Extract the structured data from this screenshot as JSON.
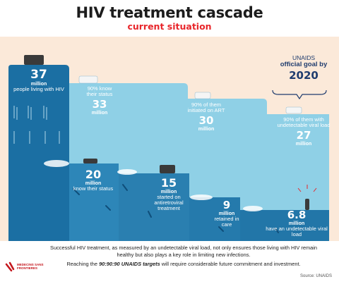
{
  "title": "HIV treatment cascade",
  "subtitle": "current situation",
  "goal": {
    "line1": "UNAIDS",
    "line2": "official goal by",
    "year": "2020"
  },
  "goal_stages": [
    {
      "pct": "90% know",
      "label": "their status",
      "number": "33",
      "unit": "million"
    },
    {
      "pct": "90% of them",
      "label": "initiated on ART",
      "number": "30",
      "unit": "million"
    },
    {
      "pct": "90% of them with",
      "label": "undetectable viral load",
      "number": "27",
      "unit": "million"
    }
  ],
  "current_stages": [
    {
      "number": "37",
      "unit": "million",
      "label": "people living with HIV"
    },
    {
      "number": "20",
      "unit": "million",
      "label": "know their status"
    },
    {
      "number": "15",
      "unit": "million",
      "label": "started on antiretroviral treatment"
    },
    {
      "number": "9",
      "unit": "million",
      "label": "retained in care"
    },
    {
      "number": "6.8",
      "unit": "million",
      "label": "have an undetectable viral load"
    }
  ],
  "footer": {
    "line1": "Successful HIV treatment, as measured by an undetectable viral load, not only ensures those living with HIV remain healthy but also plays a key role in limiting new infections.",
    "line2_prefix": "Reaching the",
    "line2_emph": "90:90:90 UNAIDS targets",
    "line2_suffix": "will require considerable future commitment and investment.",
    "source": "Source: UNAIDS"
  },
  "logo": {
    "text": "MEDECINS SANS FRONTIERES"
  },
  "colors": {
    "dark_water": "#1b6fa3",
    "light_water": "#8fd0e6",
    "accent": "#e8262b",
    "panel": "#fbe9d9",
    "goal_text": "#1f3c6e"
  }
}
